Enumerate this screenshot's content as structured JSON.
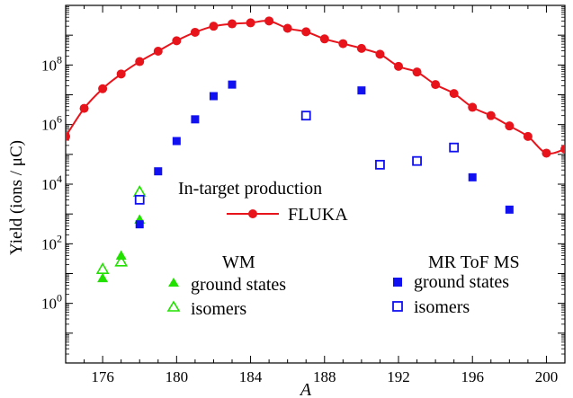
{
  "chart_data": {
    "type": "scatter",
    "xlabel": "A",
    "ylabel": "Yield (ions / μC)",
    "xlim": [
      174,
      201
    ],
    "ylim_log10": [
      -2,
      10
    ],
    "y_scale": "log",
    "x_ticks": [
      176,
      180,
      184,
      188,
      192,
      196,
      200
    ],
    "x_tick_labels": [
      "176",
      "180",
      "184",
      "188",
      "192",
      "196",
      "200"
    ],
    "y_ticks_exp": [
      0,
      2,
      4,
      6,
      8
    ],
    "y_tick_bases": [
      "10",
      "10",
      "10",
      "10",
      "10"
    ],
    "y_tick_exps": [
      "0",
      "2",
      "4",
      "6",
      "8"
    ],
    "grid": false,
    "annotations": {
      "intarget_title": "In-target production",
      "fluka_label": "FLUKA",
      "wm_title": "WM",
      "wm_ground": "ground states",
      "wm_isomers": "isomers",
      "mr_title": "MR ToF MS",
      "mr_ground": "ground states",
      "mr_isomers": "isomers"
    },
    "colors": {
      "fluka": "#e8141c",
      "wm": "#22e000",
      "mr": "#1010f0"
    },
    "series": [
      {
        "name": "FLUKA",
        "style": "line-with-circles",
        "points": [
          [
            174,
            400000.0
          ],
          [
            175,
            3500000.0
          ],
          [
            176,
            16000000.0
          ],
          [
            177,
            50000000.0
          ],
          [
            178,
            130000000.0
          ],
          [
            179,
            290000000.0
          ],
          [
            180,
            650000000.0
          ],
          [
            181,
            1250000000.0
          ],
          [
            182,
            2000000000.0
          ],
          [
            183,
            2400000000.0
          ],
          [
            184,
            2600000000.0
          ],
          [
            185,
            3000000000.0
          ],
          [
            186,
            1700000000.0
          ],
          [
            187,
            1300000000.0
          ],
          [
            188,
            750000000.0
          ],
          [
            189,
            520000000.0
          ],
          [
            190,
            360000000.0
          ],
          [
            191,
            230000000.0
          ],
          [
            192,
            90000000.0
          ],
          [
            193,
            58000000.0
          ],
          [
            194,
            22000000.0
          ],
          [
            195,
            11000000.0
          ],
          [
            196,
            3800000.0
          ],
          [
            197,
            2000000.0
          ],
          [
            198,
            900000.0
          ],
          [
            199,
            400000.0
          ],
          [
            200,
            110000.0
          ],
          [
            201,
            150000.0
          ]
        ]
      },
      {
        "name": "WM ground states",
        "style": "filled-triangle",
        "points": [
          [
            176,
            7.0
          ],
          [
            177,
            40.0
          ],
          [
            178,
            650.0
          ]
        ]
      },
      {
        "name": "WM isomers",
        "style": "open-triangle",
        "points": [
          [
            176,
            14.0
          ],
          [
            177,
            25.0
          ],
          [
            178,
            5500.0
          ]
        ]
      },
      {
        "name": "MR ToF MS ground states",
        "style": "filled-square",
        "points": [
          [
            178,
            450.0
          ],
          [
            179,
            27000.0
          ],
          [
            180,
            280000.0
          ],
          [
            181,
            1500000.0
          ],
          [
            182,
            9000000.0
          ],
          [
            183,
            22000000.0
          ],
          [
            190,
            14000000.0
          ],
          [
            196,
            17000.0
          ],
          [
            198,
            1400.0
          ]
        ]
      },
      {
        "name": "MR ToF MS isomers",
        "style": "open-square",
        "points": [
          [
            178,
            3000.0
          ],
          [
            187,
            2000000.0
          ],
          [
            191,
            45000.0
          ],
          [
            193,
            60000.0
          ],
          [
            195,
            170000.0
          ]
        ]
      }
    ]
  }
}
